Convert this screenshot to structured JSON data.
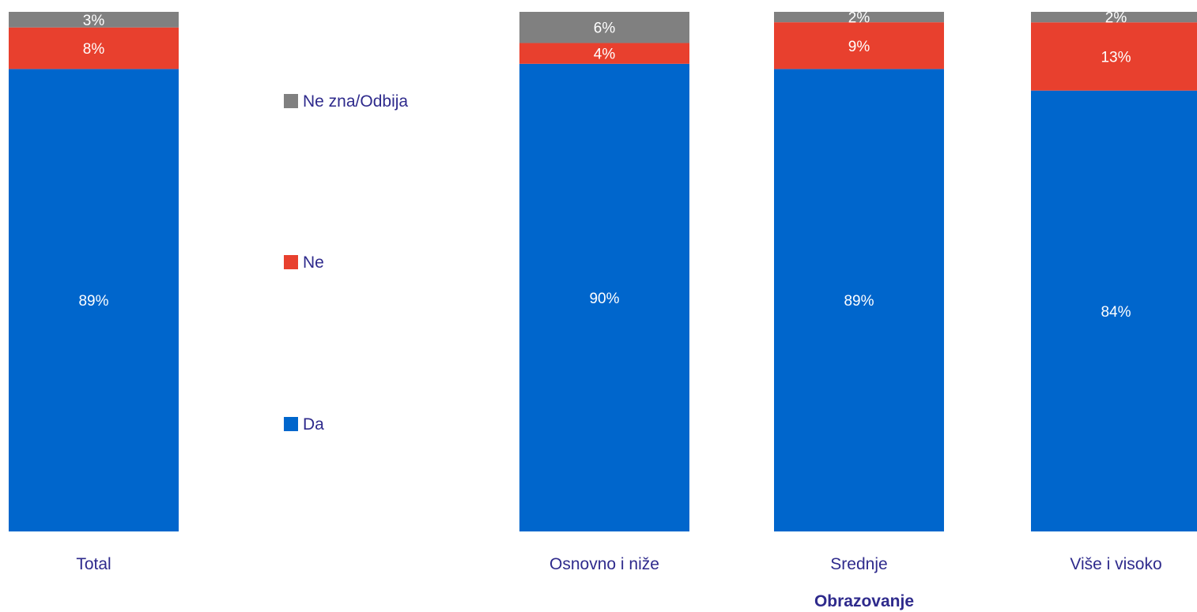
{
  "chart_data": {
    "type": "bar",
    "stacked": true,
    "orientation": "vertical",
    "categories": [
      "Total",
      "Osnovno i niže",
      "Srednje",
      "Više i visoko"
    ],
    "series": [
      {
        "name": "Da",
        "color": "#0066cc",
        "values": [
          89,
          90,
          89,
          84
        ],
        "labels": [
          "89%",
          "90%",
          "89%",
          "84%"
        ]
      },
      {
        "name": "Ne",
        "color": "#e8402e",
        "values": [
          8,
          4,
          9,
          13
        ],
        "labels": [
          "8%",
          "4%",
          "9%",
          "13%"
        ]
      },
      {
        "name": "Ne zna/Odbija",
        "color": "#808080",
        "values": [
          3,
          6,
          2,
          2
        ],
        "labels": [
          "3%",
          "6%",
          "2%",
          "2%"
        ]
      }
    ],
    "group_label": "Obrazovanje",
    "legend": {
      "placement": "left-center",
      "entries": [
        "Ne zna/Odbija",
        "Ne",
        "Da"
      ]
    },
    "ylim": [
      0,
      100
    ],
    "grid": false
  },
  "colors": {
    "da": "#0066cc",
    "ne": "#e8402e",
    "ne_zna": "#808080",
    "text": "#2e2a8c"
  }
}
